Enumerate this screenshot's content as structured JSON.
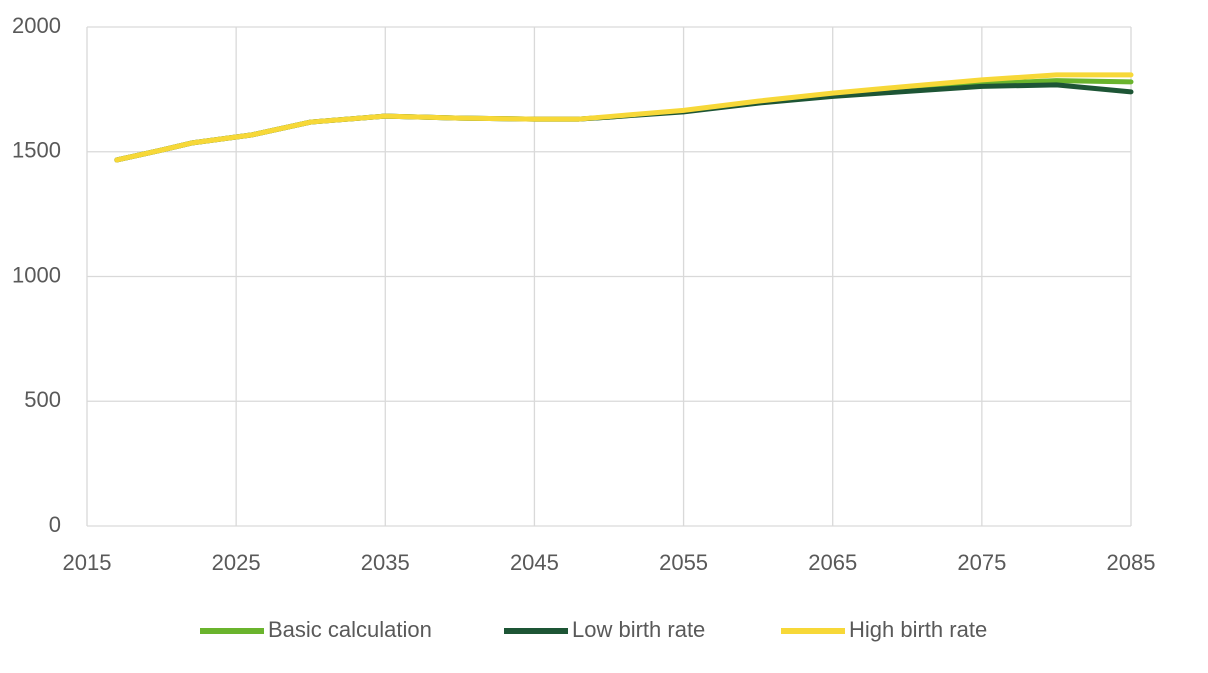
{
  "chart_data": {
    "type": "line",
    "x": [
      2017,
      2020,
      2022,
      2026,
      2030,
      2035,
      2040,
      2045,
      2048,
      2050,
      2055,
      2060,
      2065,
      2070,
      2075,
      2080,
      2085
    ],
    "series": [
      {
        "name": "Basic calculation",
        "color": "#6ab42d",
        "values": [
          1467,
          1507,
          1535,
          1567,
          1619,
          1643,
          1635,
          1631,
          1631,
          1639,
          1663,
          1699,
          1728,
          1752,
          1772,
          1785,
          1780
        ]
      },
      {
        "name": "Low birth rate",
        "color": "#1d5535",
        "values": [
          1467,
          1507,
          1535,
          1567,
          1619,
          1643,
          1635,
          1631,
          1631,
          1639,
          1660,
          1695,
          1722,
          1742,
          1762,
          1768,
          1740
        ]
      },
      {
        "name": "High birth rate",
        "color": "#f7d838",
        "values": [
          1467,
          1507,
          1535,
          1567,
          1619,
          1643,
          1635,
          1631,
          1631,
          1641,
          1666,
          1703,
          1735,
          1762,
          1788,
          1808,
          1808
        ]
      }
    ],
    "xlim": [
      2015,
      2085
    ],
    "xticks": [
      2015,
      2025,
      2035,
      2045,
      2055,
      2065,
      2075,
      2085
    ],
    "ylim": [
      0,
      2000
    ],
    "yticks": [
      0,
      500,
      1000,
      1500,
      2000
    ],
    "grid": true,
    "legend": "bottom"
  }
}
